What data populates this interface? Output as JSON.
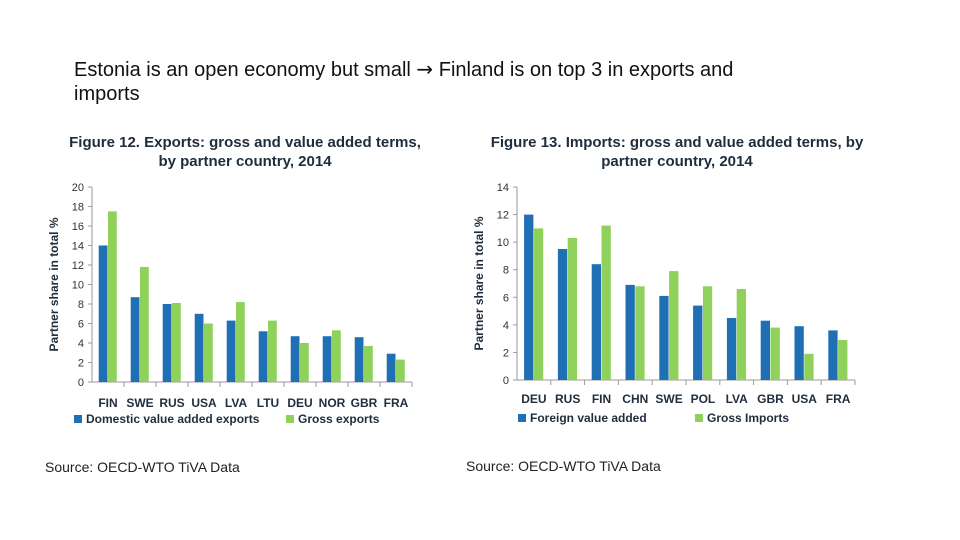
{
  "slide": {
    "title_part1": "Estonia is an open economy but small",
    "arrow": "→",
    "title_part2": "Finland is on top 3 in exports and",
    "title_line2": "imports"
  },
  "chart_data": [
    {
      "type": "bar",
      "title_line1": "Figure 12. Exports: gross and value added terms,",
      "title_line2": "by partner country, 2014",
      "ylabel": "Partner share in total %",
      "ylim": [
        0,
        20
      ],
      "yticks": [
        "0",
        "2",
        "4",
        "6",
        "8",
        "10",
        "12",
        "14",
        "16",
        "18",
        "20"
      ],
      "categories": [
        "FIN",
        "SWE",
        "RUS",
        "USA",
        "LVA",
        "LTU",
        "DEU",
        "NOR",
        "GBR",
        "FRA"
      ],
      "series": [
        {
          "name": "Domestic value added exports",
          "color": "#1f6fb5",
          "values": [
            14.0,
            8.7,
            8.0,
            7.0,
            6.3,
            5.2,
            4.7,
            4.7,
            4.6,
            2.9
          ]
        },
        {
          "name": "Gross exports",
          "color": "#8fd15a",
          "values": [
            17.5,
            11.8,
            8.1,
            6.0,
            8.2,
            6.3,
            4.0,
            5.3,
            3.7,
            2.3
          ]
        }
      ],
      "source": "Source: OECD-WTO TiVA Data"
    },
    {
      "type": "bar",
      "title_line1": "Figure 13. Imports: gross and value added terms, by",
      "title_line2": "partner country, 2014",
      "ylabel": "Partner share in total %",
      "ylim": [
        0,
        14
      ],
      "yticks": [
        "0",
        "2",
        "4",
        "6",
        "8",
        "10",
        "12",
        "14"
      ],
      "categories": [
        "DEU",
        "RUS",
        "FIN",
        "CHN",
        "SWE",
        "POL",
        "LVA",
        "GBR",
        "USA",
        "FRA"
      ],
      "series": [
        {
          "name": "Foreign value added",
          "color": "#1f6fb5",
          "values": [
            12.0,
            9.5,
            8.4,
            6.9,
            6.1,
            5.4,
            4.5,
            4.3,
            3.9,
            3.6
          ]
        },
        {
          "name": "Gross Imports",
          "color": "#8fd15a",
          "values": [
            11.0,
            10.3,
            11.2,
            6.8,
            7.9,
            6.8,
            6.6,
            3.8,
            1.9,
            2.9
          ]
        }
      ],
      "source": "Source: OECD-WTO TiVA Data"
    }
  ]
}
